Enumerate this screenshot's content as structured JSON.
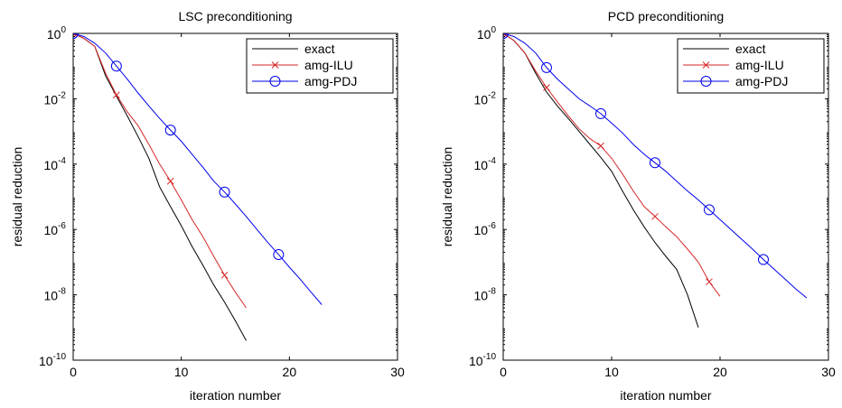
{
  "chart_data": [
    {
      "type": "line",
      "title": "LSC preconditioning",
      "xlabel": "iteration number",
      "ylabel": "residual reduction",
      "xlim": [
        0,
        30
      ],
      "ylim": [
        1e-10,
        1
      ],
      "yscale": "log",
      "x_ticks": [
        "0",
        "10",
        "20",
        "30"
      ],
      "y_ticks": [
        {
          "base": "10",
          "exp": "0",
          "value": 1
        },
        {
          "base": "10",
          "exp": "-2",
          "value": 0.01
        },
        {
          "base": "10",
          "exp": "-4",
          "value": 0.0001
        },
        {
          "base": "10",
          "exp": "-6",
          "value": 1e-06
        },
        {
          "base": "10",
          "exp": "-8",
          "value": 1e-08
        },
        {
          "base": "10",
          "exp": "-10",
          "value": 1e-10
        }
      ],
      "legend_position": "top-right",
      "series": [
        {
          "name": "exact",
          "color": "#000000",
          "marker": "none",
          "x": [
            0,
            1,
            2,
            3,
            4,
            5,
            6,
            7,
            8,
            9,
            10,
            11,
            12,
            13,
            14,
            15,
            16
          ],
          "y": [
            1,
            0.7,
            0.4,
            0.05,
            0.012,
            0.003,
            0.0007,
            0.00015,
            2e-05,
            5e-06,
            1.3e-06,
            3e-07,
            8e-08,
            2e-08,
            6e-09,
            1.6e-09,
            4e-10
          ]
        },
        {
          "name": "amg-ILU",
          "color": "#d62728",
          "marker": "x",
          "marker_x": [
            0,
            4,
            9,
            14
          ],
          "x": [
            0,
            1,
            2,
            3,
            4,
            5,
            6,
            7,
            8,
            9,
            10,
            11,
            12,
            13,
            14,
            15,
            16
          ],
          "y": [
            1,
            0.7,
            0.4,
            0.06,
            0.013,
            0.004,
            0.0015,
            0.0004,
            0.0001,
            3e-05,
            8e-06,
            2e-06,
            6e-07,
            1.5e-07,
            4e-08,
            1.2e-08,
            4e-09
          ]
        },
        {
          "name": "amg-PDJ",
          "color": "#0000ee",
          "marker": "o",
          "marker_x": [
            0,
            4,
            9,
            14,
            19
          ],
          "x": [
            0,
            1,
            2,
            3,
            4,
            5,
            6,
            7,
            8,
            9,
            10,
            11,
            12,
            13,
            14,
            15,
            16,
            17,
            18,
            19,
            20,
            21,
            22,
            23
          ],
          "y": [
            1,
            0.8,
            0.5,
            0.25,
            0.1,
            0.04,
            0.015,
            0.006,
            0.0025,
            0.0011,
            0.0005,
            0.0002,
            8e-05,
            3e-05,
            1.4e-05,
            6e-06,
            2.5e-06,
            1e-06,
            4e-07,
            1.7e-07,
            7e-08,
            3e-08,
            1.2e-08,
            5e-09
          ]
        }
      ]
    },
    {
      "type": "line",
      "title": "PCD preconditioning",
      "xlabel": "iteration number",
      "ylabel": "residual reduction",
      "xlim": [
        0,
        30
      ],
      "ylim": [
        1e-10,
        1
      ],
      "yscale": "log",
      "x_ticks": [
        "0",
        "10",
        "20",
        "30"
      ],
      "y_ticks": [
        {
          "base": "10",
          "exp": "0",
          "value": 1
        },
        {
          "base": "10",
          "exp": "-2",
          "value": 0.01
        },
        {
          "base": "10",
          "exp": "-4",
          "value": 0.0001
        },
        {
          "base": "10",
          "exp": "-6",
          "value": 1e-06
        },
        {
          "base": "10",
          "exp": "-8",
          "value": 1e-08
        },
        {
          "base": "10",
          "exp": "-10",
          "value": 1e-10
        }
      ],
      "legend_position": "top-right",
      "series": [
        {
          "name": "exact",
          "color": "#000000",
          "marker": "none",
          "x": [
            0,
            1,
            2,
            3,
            4,
            5,
            6,
            7,
            8,
            9,
            10,
            11,
            12,
            13,
            14,
            15,
            16,
            17,
            18
          ],
          "y": [
            1,
            0.6,
            0.25,
            0.06,
            0.016,
            0.006,
            0.0025,
            0.001,
            0.0004,
            0.00016,
            6e-05,
            1.5e-05,
            4e-06,
            1.2e-06,
            4e-07,
            1.5e-07,
            6e-08,
            1e-08,
            1e-09
          ]
        },
        {
          "name": "amg-ILU",
          "color": "#d62728",
          "marker": "x",
          "marker_x": [
            0,
            4,
            9,
            14,
            19
          ],
          "x": [
            0,
            1,
            2,
            3,
            4,
            5,
            6,
            7,
            8,
            9,
            10,
            11,
            12,
            13,
            14,
            15,
            16,
            17,
            18,
            19,
            20
          ],
          "y": [
            1,
            0.6,
            0.25,
            0.07,
            0.022,
            0.008,
            0.003,
            0.0012,
            0.0006,
            0.00036,
            0.00015,
            5e-05,
            1.5e-05,
            5e-06,
            2.5e-06,
            1.2e-06,
            6e-07,
            2.5e-07,
            1e-07,
            2.5e-08,
            9e-09
          ]
        },
        {
          "name": "amg-PDJ",
          "color": "#0000ee",
          "marker": "o",
          "marker_x": [
            0,
            4,
            9,
            14,
            19,
            24
          ],
          "x": [
            0,
            1,
            2,
            3,
            4,
            5,
            6,
            7,
            8,
            9,
            10,
            11,
            12,
            13,
            14,
            15,
            16,
            17,
            18,
            19,
            20,
            21,
            22,
            23,
            24,
            25,
            26,
            27,
            28
          ],
          "y": [
            1,
            0.8,
            0.5,
            0.25,
            0.09,
            0.04,
            0.02,
            0.01,
            0.006,
            0.0035,
            0.0018,
            0.0009,
            0.0004,
            0.0002,
            0.00011,
            6e-05,
            3e-05,
            1.5e-05,
            8e-06,
            4e-06,
            2e-06,
            1e-06,
            5e-07,
            2.5e-07,
            1.2e-07,
            6e-08,
            3e-08,
            1.5e-08,
            8e-09
          ]
        }
      ]
    }
  ]
}
